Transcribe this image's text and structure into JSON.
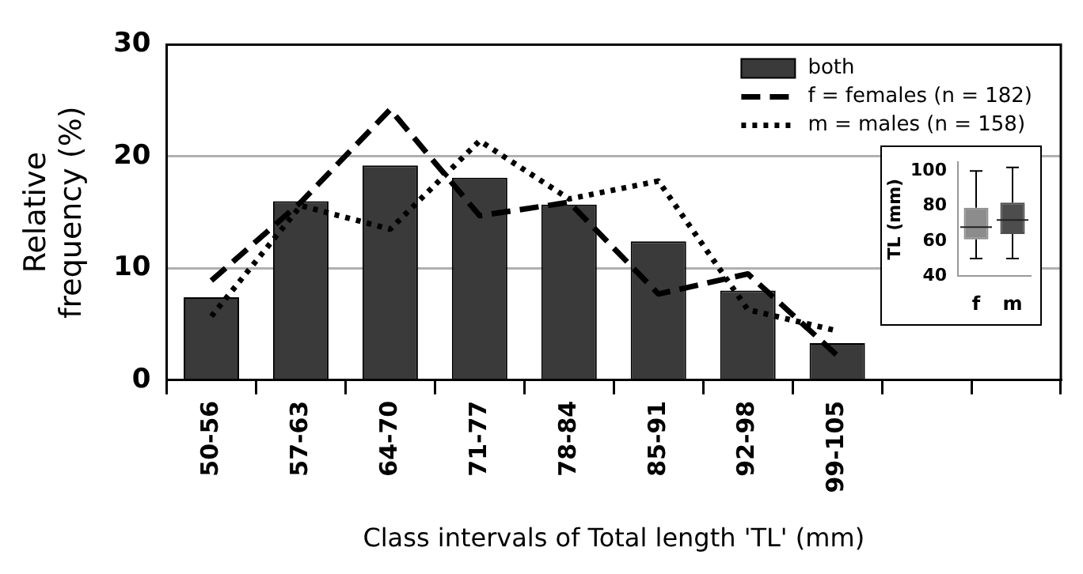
{
  "chart_data": [
    {
      "type": "bar",
      "xlabel": "Class intervals of Total length 'TL' (mm)",
      "ylabel": "Relative frequency (%)",
      "categories": [
        "50-56",
        "57-63",
        "64-70",
        "71-77",
        "78-84",
        "85-91",
        "92-98",
        "99-105",
        null,
        null
      ],
      "series": [
        {
          "name": "both",
          "type": "bar",
          "color": "#3a3a3a",
          "values": [
            7.4,
            16,
            19.2,
            18.1,
            15.7,
            12.4,
            8.0,
            3.3,
            null,
            null
          ]
        },
        {
          "name": "f = females (n = 182)",
          "type": "line",
          "line_style": "dashed",
          "color": "#000000",
          "values": [
            8.9,
            15.9,
            24.2,
            14.7,
            15.9,
            7.7,
            9.5,
            2.2,
            null,
            null
          ]
        },
        {
          "name": "m = males (n = 158)",
          "type": "line",
          "line_style": "dotted",
          "color": "#000000",
          "values": [
            5.7,
            15.6,
            13.5,
            21.4,
            16.2,
            17.8,
            6.3,
            4.4,
            null,
            null
          ]
        }
      ],
      "ylim": [
        0,
        30
      ],
      "yticks": [
        0,
        10,
        20,
        30
      ],
      "grid": "y",
      "legend": "top right",
      "marker": "none"
    },
    {
      "type": "box",
      "ylabel": "TL (mm)",
      "categories": [
        "f",
        "m"
      ],
      "colors": [
        "#8c8c8c",
        "#4d4d4d"
      ],
      "boxes": [
        {
          "low": 50,
          "q1": 61,
          "median": 68,
          "q3": 79,
          "high": 100
        },
        {
          "low": 50,
          "q1": 64,
          "median": 72,
          "q3": 82,
          "high": 102
        }
      ],
      "ylim": [
        40,
        105
      ],
      "yticks": [
        40,
        60,
        80,
        100
      ]
    }
  ]
}
